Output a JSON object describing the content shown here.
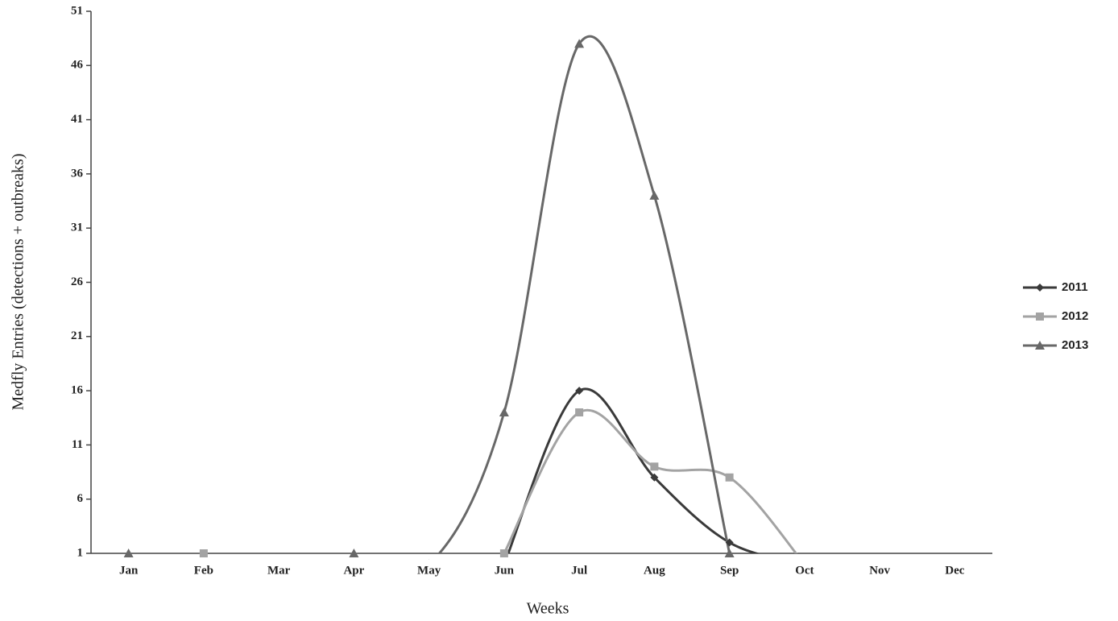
{
  "chart_data": {
    "type": "line",
    "x_label": "Weeks",
    "y_label": "Medfly Entries (detections + outbreaks)",
    "categories": [
      "Jan",
      "Feb",
      "Mar",
      "Apr",
      "May",
      "Jun",
      "Jul",
      "Aug",
      "Sep",
      "Oct",
      "Nov",
      "Dec"
    ],
    "series": [
      {
        "name": "2011",
        "color": "#3a3a3a",
        "marker": "diamond",
        "values": [
          null,
          null,
          null,
          null,
          null,
          0,
          16,
          8,
          2,
          0,
          null,
          null
        ]
      },
      {
        "name": "2012",
        "color": "#a3a3a3",
        "marker": "square",
        "values": [
          null,
          1,
          null,
          null,
          null,
          1,
          14,
          9,
          8,
          0,
          null,
          null
        ]
      },
      {
        "name": "2013",
        "color": "#686868",
        "marker": "triangle",
        "values": [
          1,
          null,
          null,
          1,
          0,
          14,
          48,
          34,
          1,
          null,
          null,
          null
        ]
      }
    ],
    "ylim": [
      1,
      51
    ],
    "yticks": [
      1,
      6,
      11,
      16,
      21,
      26,
      31,
      36,
      41,
      46,
      51
    ],
    "grid": false,
    "smooth": true,
    "legend": "right"
  }
}
